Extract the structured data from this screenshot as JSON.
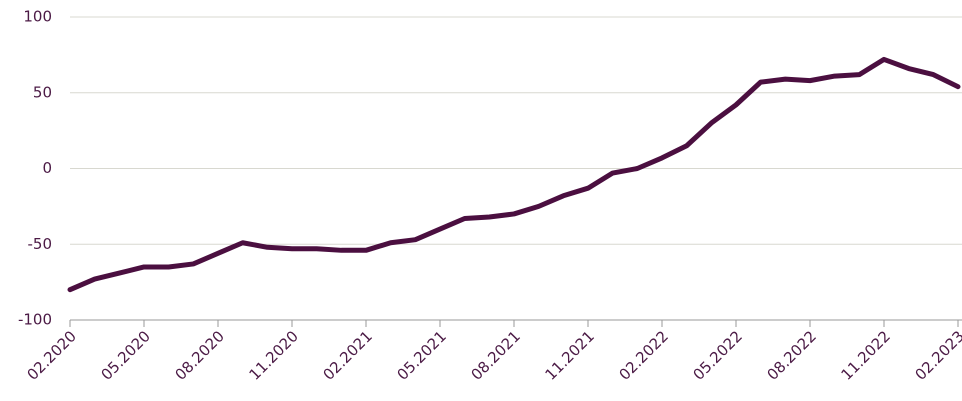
{
  "chart_data": {
    "type": "line",
    "x": [
      "2020-02",
      "2020-03",
      "2020-04",
      "2020-05",
      "2020-06",
      "2020-07",
      "2020-08",
      "2020-09",
      "2020-10",
      "2020-11",
      "2020-12",
      "2021-01",
      "2021-02",
      "2021-03",
      "2021-04",
      "2021-05",
      "2021-06",
      "2021-07",
      "2021-08",
      "2021-09",
      "2021-10",
      "2021-11",
      "2021-12",
      "2022-01",
      "2022-02",
      "2022-03",
      "2022-04",
      "2022-05",
      "2022-06",
      "2022-07",
      "2022-08",
      "2022-09",
      "2022-10",
      "2022-11",
      "2022-12",
      "2023-01",
      "2023-02"
    ],
    "series": [
      {
        "color": "#4b0f40",
        "values": [
          -80,
          -73,
          -69,
          -65,
          -65,
          -63,
          -56,
          -49,
          -52,
          -53,
          -53,
          -54,
          -54,
          -49,
          -47,
          -40,
          -33,
          -32,
          -30,
          -25,
          -18,
          -13,
          -3,
          0,
          7,
          15,
          30,
          42,
          57,
          59,
          58,
          61,
          62,
          72,
          66,
          62,
          54
        ]
      }
    ],
    "xlim": [
      "2020-02",
      "2023-02"
    ],
    "xticks": [
      {
        "value": "2020-02",
        "label": "02.2020"
      },
      {
        "value": "2020-05",
        "label": "05.2020"
      },
      {
        "value": "2020-08",
        "label": "08.2020"
      },
      {
        "value": "2020-11",
        "label": "11.2020"
      },
      {
        "value": "2021-02",
        "label": "02.2021"
      },
      {
        "value": "2021-05",
        "label": "05.2021"
      },
      {
        "value": "2021-08",
        "label": "08.2021"
      },
      {
        "value": "2021-11",
        "label": "11.2021"
      },
      {
        "value": "2022-02",
        "label": "02.2022"
      },
      {
        "value": "2022-05",
        "label": "05.2022"
      },
      {
        "value": "2022-08",
        "label": "08.2022"
      },
      {
        "value": "2022-11",
        "label": "11.2022"
      },
      {
        "value": "2023-02",
        "label": "02.2023"
      }
    ],
    "ylim": [
      -100,
      100
    ],
    "yticks": [
      -100,
      -50,
      0,
      50,
      100
    ],
    "grid": true
  }
}
